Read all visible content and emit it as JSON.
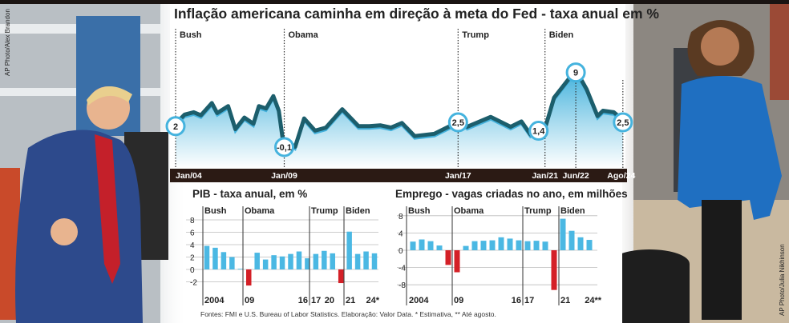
{
  "photos": {
    "left_credit": "AP Photo/Alex Brandon",
    "right_credit": "AP Photo/Julia Nikhinson"
  },
  "colors": {
    "bar_positive": "#4bb8e3",
    "bar_negative": "#d42027",
    "line": "#1c5e6c",
    "area_top": "#43b1dc",
    "axis_bar": "#2b1a14"
  },
  "footnote": "Fontes: FMI e U.S. Bureau of Labor Statistics. Elaboração: Valor Data. * Estimativa, ** Até agosto.",
  "chart_data": [
    {
      "type": "area",
      "title": "Inflação americana caminha em direção à meta do Fed - taxa anual em %",
      "x_ticks": [
        "Jan/04",
        "Jan/09",
        "Jan/17",
        "Jan/21",
        "Jun/22",
        "Ago/24"
      ],
      "periods": [
        "Bush",
        "Obama",
        "Trump",
        "Biden"
      ],
      "highlighted": [
        {
          "date": "2004-01",
          "label": "2"
        },
        {
          "date": "2009-01",
          "label": "-0,1"
        },
        {
          "date": "2017-01",
          "label": "2,5"
        },
        {
          "date": "2021-01",
          "label": "1,4"
        },
        {
          "date": "2022-06",
          "label": "9"
        },
        {
          "date": "2024-08",
          "label": "2,5"
        }
      ],
      "ylim": [
        -1,
        10
      ],
      "grid": false,
      "points": [
        [
          "2004-01",
          2.0
        ],
        [
          "2004-06",
          3.2
        ],
        [
          "2004-11",
          3.5
        ],
        [
          "2005-03",
          3.1
        ],
        [
          "2005-09",
          4.7
        ],
        [
          "2005-12",
          3.4
        ],
        [
          "2006-06",
          4.3
        ],
        [
          "2006-10",
          1.3
        ],
        [
          "2007-03",
          2.8
        ],
        [
          "2007-08",
          2.0
        ],
        [
          "2007-11",
          4.3
        ],
        [
          "2008-03",
          4.0
        ],
        [
          "2008-07",
          5.6
        ],
        [
          "2008-10",
          3.7
        ],
        [
          "2008-12",
          0.3
        ],
        [
          "2009-01",
          -0.1
        ],
        [
          "2009-07",
          -1.0
        ],
        [
          "2009-12",
          2.7
        ],
        [
          "2010-06",
          1.1
        ],
        [
          "2010-12",
          1.5
        ],
        [
          "2011-09",
          3.9
        ],
        [
          "2012-06",
          1.7
        ],
        [
          "2012-12",
          1.7
        ],
        [
          "2013-06",
          1.8
        ],
        [
          "2013-12",
          1.5
        ],
        [
          "2014-06",
          2.1
        ],
        [
          "2015-01",
          0.4
        ],
        [
          "2015-12",
          0.7
        ],
        [
          "2016-12",
          2.1
        ],
        [
          "2017-01",
          2.5
        ],
        [
          "2017-06",
          1.6
        ],
        [
          "2018-07",
          2.9
        ],
        [
          "2019-06",
          1.6
        ],
        [
          "2019-12",
          2.3
        ],
        [
          "2020-05",
          0.6
        ],
        [
          "2020-12",
          1.4
        ],
        [
          "2021-01",
          1.4
        ],
        [
          "2021-06",
          5.4
        ],
        [
          "2022-06",
          9.0
        ],
        [
          "2022-12",
          6.5
        ],
        [
          "2023-06",
          3.0
        ],
        [
          "2023-09",
          3.7
        ],
        [
          "2024-03",
          3.5
        ],
        [
          "2024-08",
          2.5
        ]
      ]
    },
    {
      "type": "bar",
      "title": "PIB - taxa anual, em %",
      "periods": [
        "Bush",
        "Obama",
        "Trump",
        "Biden"
      ],
      "categories": [
        "2004",
        "2005",
        "2006",
        "2007",
        "2008",
        "2009",
        "2010",
        "2011",
        "2012",
        "2013",
        "2014",
        "2015",
        "2016",
        "2017",
        "2018",
        "2019",
        "2020",
        "2021",
        "2022",
        "2023",
        "2024*"
      ],
      "values": [
        3.8,
        3.5,
        2.8,
        2.0,
        0.1,
        -2.6,
        2.7,
        1.6,
        2.3,
        2.1,
        2.5,
        2.9,
        1.8,
        2.5,
        3.0,
        2.6,
        -2.2,
        6.1,
        2.5,
        2.9,
        2.6
      ],
      "x_tick_labels": [
        "2004",
        "09",
        "16",
        "17",
        "20",
        "21",
        "24*"
      ],
      "y_ticks": [
        "8",
        "6",
        "4",
        "2",
        "0",
        "-2"
      ],
      "ylim": [
        -3,
        9
      ]
    },
    {
      "type": "bar",
      "title": "Emprego - vagas criadas no ano, em milhões",
      "periods": [
        "Bush",
        "Obama",
        "Trump",
        "Biden"
      ],
      "categories": [
        "2004",
        "2005",
        "2006",
        "2007",
        "2008",
        "2009",
        "2010",
        "2011",
        "2012",
        "2013",
        "2014",
        "2015",
        "2016",
        "2017",
        "2018",
        "2019",
        "2020",
        "2021",
        "2022",
        "2023",
        "2024**"
      ],
      "values": [
        2.0,
        2.5,
        2.1,
        1.1,
        -3.4,
        -5.1,
        1.0,
        2.1,
        2.2,
        2.3,
        3.0,
        2.7,
        2.3,
        2.1,
        2.2,
        2.0,
        -9.2,
        7.3,
        4.5,
        3.0,
        2.4
      ],
      "x_tick_labels": [
        "2004",
        "09",
        "16",
        "17",
        "21",
        "24**"
      ],
      "y_ticks": [
        "8",
        "4",
        "0",
        "-4",
        "-8"
      ],
      "ylim": [
        -10,
        9
      ]
    }
  ]
}
